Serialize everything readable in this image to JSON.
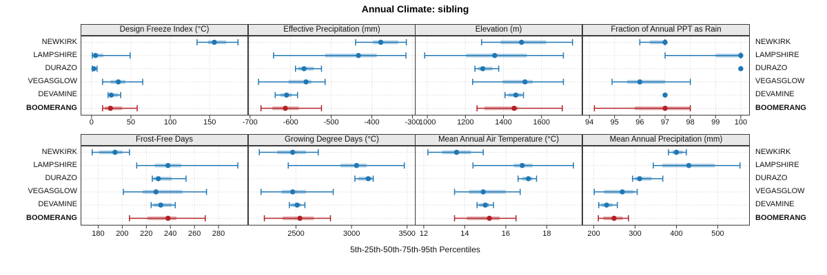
{
  "title": "Annual Climate: sibling",
  "xlabel": "5th-25th-50th-75th-95th Percentiles",
  "sites": [
    "NEWKIRK",
    "LAMPSHIRE",
    "DURAZO",
    "VEGASGLOW",
    "DEVAMINE",
    "BOOMERANG"
  ],
  "highlight_site": "BOOMERANG",
  "colors": {
    "series": "#1F77B4",
    "highlight": "#B22025",
    "header_bg": "#E8E8E8",
    "panel_border": "#3A3A3A",
    "grid": "#C9C9C9"
  },
  "chart_data": {
    "type": "scatter",
    "subtype": "percentile-dot-whisker-grid",
    "grid": {
      "rows": 2,
      "cols": 4
    },
    "percentile_labels": [
      "5th",
      "25th",
      "50th",
      "75th",
      "95th"
    ],
    "legend_position": "none",
    "grid_lines": "dotted",
    "panels": [
      {
        "title": "Design Freeze Index (°C)",
        "xlim": [
          -13,
          198
        ],
        "ticks": [
          0,
          50,
          100,
          150
        ],
        "values": {
          "NEWKIRK": [
            134,
            148,
            156,
            171,
            186
          ],
          "LAMPSHIRE": [
            1,
            3,
            5,
            15,
            49
          ],
          "DURAZO": [
            1,
            2,
            3,
            5,
            7
          ],
          "VEGASGLOW": [
            14,
            24,
            34,
            43,
            65
          ],
          "DEVAMINE": [
            21,
            23,
            25,
            34,
            37
          ],
          "BOOMERANG": [
            14,
            17,
            24,
            39,
            58
          ]
        }
      },
      {
        "title": "Effective Precipitation (mm)",
        "xlim": [
          -703,
          -294
        ],
        "ticks": [
          -700,
          -600,
          -500,
          -400,
          -300
        ],
        "values": {
          "NEWKIRK": [
            -440,
            -397,
            -378,
            -335,
            -315
          ],
          "LAMPSHIRE": [
            -642,
            -515,
            -433,
            -388,
            -316
          ],
          "DURAZO": [
            -588,
            -581,
            -567,
            -543,
            -524
          ],
          "VEGASGLOW": [
            -679,
            -605,
            -562,
            -549,
            -515
          ],
          "DEVAMINE": [
            -638,
            -625,
            -610,
            -597,
            -583
          ],
          "BOOMERANG": [
            -673,
            -645,
            -613,
            -580,
            -524
          ]
        }
      },
      {
        "title": "Elevation (m)",
        "xlim": [
          938,
          1811
        ],
        "ticks": [
          1000,
          1200,
          1400,
          1600
        ],
        "values": {
          "NEWKIRK": [
            1285,
            1385,
            1495,
            1625,
            1763
          ],
          "LAMPSHIRE": [
            986,
            1204,
            1354,
            1523,
            1715
          ],
          "DURAZO": [
            1250,
            1268,
            1291,
            1342,
            1375
          ],
          "VEGASGLOW": [
            1238,
            1396,
            1513,
            1553,
            1715
          ],
          "DEVAMINE": [
            1408,
            1426,
            1465,
            1495,
            1505
          ],
          "BOOMERANG": [
            1261,
            1300,
            1456,
            1475,
            1709
          ]
        }
      },
      {
        "title": "Fraction of Annual PPT as Rain",
        "xlim": [
          93.75,
          100.33
        ],
        "ticks": [
          94,
          95,
          96,
          97,
          98,
          99,
          100
        ],
        "values": {
          "NEWKIRK": [
            96,
            96.4,
            97,
            97,
            97
          ],
          "LAMPSHIRE": [
            97,
            99,
            100,
            100,
            100
          ],
          "DURAZO": [
            100,
            100,
            100,
            100,
            100
          ],
          "VEGASGLOW": [
            94.9,
            95.5,
            96,
            97,
            98
          ],
          "DEVAMINE": [
            97,
            97,
            97,
            97,
            97
          ],
          "BOOMERANG": [
            94.2,
            95.8,
            97,
            98,
            98
          ]
        }
      },
      {
        "title": "Frost-Free Days",
        "xlim": [
          166,
          304
        ],
        "ticks": [
          180,
          200,
          220,
          240,
          260,
          280
        ],
        "values": {
          "NEWKIRK": [
            175,
            181,
            194,
            200,
            206
          ],
          "LAMPSHIRE": [
            212,
            227,
            238,
            249,
            296
          ],
          "DURAZO": [
            225,
            226,
            230,
            241,
            253
          ],
          "VEGASGLOW": [
            201,
            217,
            228,
            250,
            270
          ],
          "DEVAMINE": [
            224,
            226,
            232,
            241,
            244
          ],
          "BOOMERANG": [
            206,
            221,
            238,
            245,
            269
          ]
        }
      },
      {
        "title": "Growing Degree Days (°C)",
        "xlim": [
          2075,
          3570
        ],
        "ticks": [
          2500,
          3000,
          3500
        ],
        "values": {
          "NEWKIRK": [
            2170,
            2330,
            2470,
            2590,
            2700
          ],
          "LAMPSHIRE": [
            2430,
            2900,
            3045,
            3135,
            3475
          ],
          "DURAZO": [
            3030,
            3060,
            3150,
            3185,
            3195
          ],
          "VEGASGLOW": [
            2185,
            2370,
            2470,
            2590,
            2835
          ],
          "DEVAMINE": [
            2440,
            2455,
            2510,
            2545,
            2580
          ],
          "BOOMERANG": [
            2215,
            2380,
            2535,
            2660,
            2810
          ]
        }
      },
      {
        "title": "Mean Annual Air Temperature (°C)",
        "xlim": [
          11.6,
          19.7
        ],
        "ticks": [
          12,
          14,
          16,
          18
        ],
        "values": {
          "NEWKIRK": [
            12.2,
            12.9,
            13.6,
            14.3,
            14.9
          ],
          "LAMPSHIRE": [
            14.4,
            16.4,
            16.8,
            17.3,
            19.3
          ],
          "DURAZO": [
            16.6,
            16.8,
            17.1,
            17.3,
            17.5
          ],
          "VEGASGLOW": [
            13.5,
            14.2,
            14.9,
            16.0,
            16.7
          ],
          "DEVAMINE": [
            14.6,
            14.7,
            15.0,
            15.2,
            15.4
          ],
          "BOOMERANG": [
            13.5,
            14.1,
            15.2,
            15.7,
            16.5
          ]
        }
      },
      {
        "title": "Mean Annual Precipitation (mm)",
        "xlim": [
          174,
          576
        ],
        "ticks": [
          200,
          300,
          400,
          500
        ],
        "values": {
          "NEWKIRK": [
            381,
            390,
            400,
            415,
            424
          ],
          "LAMPSHIRE": [
            344,
            366,
            430,
            493,
            554
          ],
          "DURAZO": [
            294,
            300,
            311,
            340,
            367
          ],
          "VEGASGLOW": [
            201,
            225,
            269,
            297,
            305
          ],
          "DEVAMINE": [
            212,
            218,
            231,
            245,
            257
          ],
          "BOOMERANG": [
            211,
            223,
            249,
            270,
            284
          ]
        }
      }
    ]
  }
}
